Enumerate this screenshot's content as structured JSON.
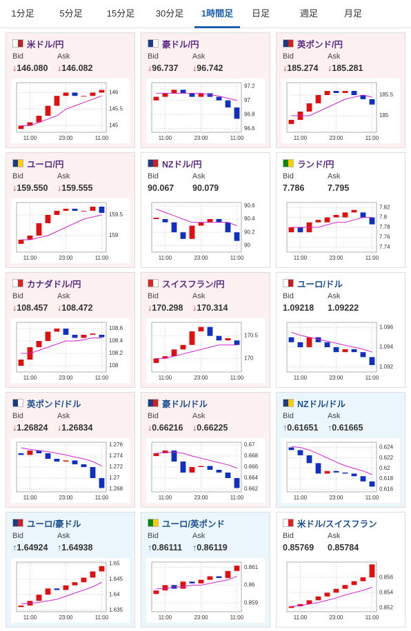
{
  "tabs": [
    "1分足",
    "5分足",
    "15分足",
    "30分足",
    "1時間足",
    "日足",
    "週足",
    "月足"
  ],
  "active_tab": 4,
  "bid_label": "Bid",
  "ask_label": "Ask",
  "cards": [
    {
      "name": "米ドル/円",
      "name_color": "#5b2a86",
      "bg": "#fdf0f0",
      "trend": "↓",
      "bid": "146.080",
      "ask": "146.082",
      "chart": {
        "type": "candlestick",
        "ylim": [
          144.8,
          146.3
        ],
        "yticks": [
          145,
          145.5,
          146
        ],
        "xticks": [
          {
            "value": 1,
            "label": "11:00"
          },
          {
            "value": 5,
            "label": "23:00"
          },
          {
            "value": 9,
            "label": "11:00"
          }
        ],
        "open": [
          144.9,
          145.0,
          145.1,
          145.3,
          145.6,
          145.9,
          146.0,
          145.9,
          145.9,
          146.0
        ],
        "close": [
          145.0,
          145.1,
          145.3,
          145.6,
          145.9,
          146.0,
          145.9,
          145.9,
          146.0,
          146.08
        ],
        "ma": [
          145.0,
          145.0,
          145.1,
          145.2,
          145.3,
          145.5,
          145.6,
          145.7,
          145.8,
          145.9
        ]
      }
    },
    {
      "name": "豪ドル/円",
      "name_color": "#5b2a86",
      "bg": "#fdf0f0",
      "trend": "↓",
      "bid": "96.737",
      "ask": "96.742",
      "chart": {
        "type": "candlestick",
        "ylim": [
          96.55,
          97.25
        ],
        "yticks": [
          96.6,
          96.8,
          97,
          97.2
        ],
        "xticks": [
          {
            "value": 1,
            "label": "11:00"
          },
          {
            "value": 5,
            "label": "23:00"
          },
          {
            "value": 9,
            "label": "11:00"
          }
        ],
        "open": [
          97.0,
          97.05,
          97.1,
          97.15,
          97.1,
          97.05,
          97.1,
          97.05,
          97.0,
          96.9
        ],
        "close": [
          97.05,
          97.1,
          97.15,
          97.1,
          97.05,
          97.1,
          97.05,
          97.0,
          96.9,
          96.74
        ],
        "ma": [
          97.1,
          97.1,
          97.1,
          97.1,
          97.1,
          97.1,
          97.08,
          97.06,
          97.03,
          97.0
        ]
      }
    },
    {
      "name": "英ポンド/円",
      "name_color": "#5b2a86",
      "bg": "#fdf0f0",
      "trend": "↓",
      "bid": "185.274",
      "ask": "185.281",
      "chart": {
        "type": "candlestick",
        "ylim": [
          184.6,
          185.8
        ],
        "yticks": [
          185,
          185.5
        ],
        "xticks": [
          {
            "value": 1,
            "label": "11:00"
          },
          {
            "value": 5,
            "label": "23:00"
          },
          {
            "value": 9,
            "label": "11:00"
          }
        ],
        "open": [
          184.8,
          184.9,
          185.1,
          185.3,
          185.5,
          185.6,
          185.55,
          185.6,
          185.5,
          185.4
        ],
        "close": [
          184.9,
          185.1,
          185.3,
          185.5,
          185.6,
          185.55,
          185.6,
          185.5,
          185.4,
          185.27
        ],
        "ma": [
          185.0,
          185.0,
          185.0,
          185.1,
          185.2,
          185.3,
          185.4,
          185.45,
          185.5,
          185.45
        ]
      }
    },
    {
      "name": "ユーロ/円",
      "name_color": "#5b2a86",
      "bg": "#fdf0f0",
      "trend": "↓",
      "bid": "159.550",
      "ask": "159.555",
      "chart": {
        "type": "candlestick",
        "ylim": [
          158.6,
          159.8
        ],
        "yticks": [
          159,
          159.5
        ],
        "xticks": [
          {
            "value": 1,
            "label": "11:00"
          },
          {
            "value": 5,
            "label": "23:00"
          },
          {
            "value": 9,
            "label": "11:00"
          }
        ],
        "open": [
          158.8,
          158.9,
          159.0,
          159.3,
          159.5,
          159.6,
          159.65,
          159.6,
          159.6,
          159.7
        ],
        "close": [
          158.9,
          159.0,
          159.3,
          159.5,
          159.6,
          159.65,
          159.6,
          159.6,
          159.7,
          159.55
        ],
        "ma": [
          158.9,
          158.9,
          158.95,
          159.0,
          159.1,
          159.2,
          159.3,
          159.4,
          159.45,
          159.5
        ]
      }
    },
    {
      "name": "NZドル/円",
      "name_color": "#5b2a86",
      "bg": "#ffffff",
      "bid": "90.067",
      "ask": "90.079",
      "chart": {
        "type": "candlestick",
        "ylim": [
          89.9,
          90.65
        ],
        "yticks": [
          90,
          90.2,
          90.4,
          90.6
        ],
        "xticks": [
          {
            "value": 1,
            "label": "11:00"
          },
          {
            "value": 5,
            "label": "23:00"
          },
          {
            "value": 9,
            "label": "11:00"
          }
        ],
        "open": [
          90.4,
          90.4,
          90.35,
          90.2,
          90.1,
          90.3,
          90.35,
          90.4,
          90.35,
          90.2
        ],
        "close": [
          90.42,
          90.35,
          90.2,
          90.1,
          90.3,
          90.35,
          90.4,
          90.35,
          90.2,
          90.07
        ],
        "ma": [
          90.55,
          90.5,
          90.45,
          90.4,
          90.35,
          90.35,
          90.35,
          90.35,
          90.35,
          90.3
        ]
      }
    },
    {
      "name": "ランド/円",
      "name_color": "#5b2a86",
      "bg": "#ffffff",
      "bid": "7.786",
      "ask": "7.795",
      "chart": {
        "type": "candlestick",
        "ylim": [
          7.73,
          7.83
        ],
        "yticks": [
          7.74,
          7.76,
          7.78,
          7.8,
          7.82
        ],
        "xticks": [
          {
            "value": 1,
            "label": "11:00"
          },
          {
            "value": 5,
            "label": "23:00"
          },
          {
            "value": 9,
            "label": "11:00"
          }
        ],
        "open": [
          7.77,
          7.78,
          7.77,
          7.79,
          7.79,
          7.8,
          7.8,
          7.81,
          7.81,
          7.8
        ],
        "close": [
          7.78,
          7.77,
          7.79,
          7.795,
          7.8,
          7.805,
          7.81,
          7.815,
          7.8,
          7.786
        ],
        "ma": [
          7.78,
          7.78,
          7.78,
          7.78,
          7.785,
          7.79,
          7.79,
          7.795,
          7.8,
          7.8
        ]
      }
    },
    {
      "name": "カナダドル/円",
      "name_color": "#5b2a86",
      "bg": "#fdf0f0",
      "trend": "↓",
      "bid": "108.457",
      "ask": "108.472",
      "chart": {
        "type": "candlestick",
        "ylim": [
          107.9,
          108.7
        ],
        "yticks": [
          108,
          108.2,
          108.4,
          108.6
        ],
        "xticks": [
          {
            "value": 1,
            "label": "11:00"
          },
          {
            "value": 5,
            "label": "23:00"
          },
          {
            "value": 9,
            "label": "11:00"
          }
        ],
        "open": [
          108.0,
          108.1,
          108.3,
          108.4,
          108.55,
          108.6,
          108.5,
          108.45,
          108.5,
          108.5
        ],
        "close": [
          108.1,
          108.3,
          108.4,
          108.55,
          108.6,
          108.5,
          108.45,
          108.5,
          108.52,
          108.46
        ],
        "ma": [
          108.2,
          108.2,
          108.25,
          108.3,
          108.35,
          108.4,
          108.4,
          108.42,
          108.45,
          108.45
        ]
      }
    },
    {
      "name": "スイスフラン/円",
      "name_color": "#5b2a86",
      "bg": "#fdf0f0",
      "trend": "↓",
      "bid": "170.298",
      "ask": "170.314",
      "chart": {
        "type": "candlestick",
        "ylim": [
          169.7,
          170.8
        ],
        "yticks": [
          170,
          170.5
        ],
        "xticks": [
          {
            "value": 1,
            "label": "11:00"
          },
          {
            "value": 5,
            "label": "23:00"
          },
          {
            "value": 9,
            "label": "11:00"
          }
        ],
        "open": [
          169.9,
          170.0,
          170.05,
          170.2,
          170.3,
          170.6,
          170.7,
          170.5,
          170.4,
          170.4
        ],
        "close": [
          170.0,
          170.05,
          170.2,
          170.3,
          170.6,
          170.7,
          170.5,
          170.4,
          170.45,
          170.3
        ],
        "ma": [
          170.0,
          170.0,
          170.05,
          170.1,
          170.15,
          170.2,
          170.25,
          170.3,
          170.3,
          170.3
        ]
      }
    },
    {
      "name": "ユーロ/ドル",
      "name_color": "#1b4f93",
      "bg": "#ffffff",
      "bid": "1.09218",
      "ask": "1.09222",
      "chart": {
        "type": "candlestick",
        "ylim": [
          1.0915,
          1.0965
        ],
        "yticks": [
          1.092,
          1.094,
          1.096
        ],
        "xticks": [
          {
            "value": 1,
            "label": "11:00"
          },
          {
            "value": 5,
            "label": "23:00"
          },
          {
            "value": 9,
            "label": "11:00"
          }
        ],
        "open": [
          1.095,
          1.0945,
          1.094,
          1.095,
          1.0945,
          1.094,
          1.0935,
          1.0938,
          1.0935,
          1.093
        ],
        "close": [
          1.0945,
          1.094,
          1.095,
          1.0945,
          1.094,
          1.0935,
          1.0938,
          1.0935,
          1.093,
          1.0922
        ],
        "ma": [
          1.0955,
          1.0952,
          1.095,
          1.0948,
          1.0946,
          1.0944,
          1.0942,
          1.094,
          1.0938,
          1.0935
        ]
      }
    },
    {
      "name": "英ポンド/ドル",
      "name_color": "#1b4f93",
      "bg": "#fdf0f0",
      "trend": "↓",
      "bid": "1.26824",
      "ask": "1.26834",
      "chart": {
        "type": "candlestick",
        "ylim": [
          1.2675,
          1.2765
        ],
        "yticks": [
          1.268,
          1.27,
          1.272,
          1.274,
          1.276
        ],
        "xticks": [
          {
            "value": 1,
            "label": "11:00"
          },
          {
            "value": 5,
            "label": "23:00"
          },
          {
            "value": 9,
            "label": "11:00"
          }
        ],
        "open": [
          1.2745,
          1.2742,
          1.275,
          1.2745,
          1.2735,
          1.273,
          1.2732,
          1.2725,
          1.272,
          1.27
        ],
        "close": [
          1.2742,
          1.275,
          1.2745,
          1.2735,
          1.273,
          1.2732,
          1.2725,
          1.272,
          1.27,
          1.2682
        ],
        "ma": [
          1.2755,
          1.2752,
          1.275,
          1.2748,
          1.2745,
          1.2742,
          1.2738,
          1.2735,
          1.273,
          1.2722
        ]
      }
    },
    {
      "name": "豪ドル/ドル",
      "name_color": "#1b4f93",
      "bg": "#fdf0f0",
      "trend": "↓",
      "bid": "0.66216",
      "ask": "0.66225",
      "chart": {
        "type": "candlestick",
        "ylim": [
          0.6615,
          0.6705
        ],
        "yticks": [
          0.662,
          0.664,
          0.666,
          0.668,
          0.67
        ],
        "xticks": [
          {
            "value": 1,
            "label": "11:00"
          },
          {
            "value": 5,
            "label": "23:00"
          },
          {
            "value": 9,
            "label": "11:00"
          }
        ],
        "open": [
          0.668,
          0.6685,
          0.669,
          0.667,
          0.665,
          0.666,
          0.6662,
          0.6655,
          0.665,
          0.664
        ],
        "close": [
          0.6685,
          0.669,
          0.667,
          0.665,
          0.666,
          0.6662,
          0.6655,
          0.665,
          0.664,
          0.6622
        ],
        "ma": [
          0.6685,
          0.6686,
          0.6687,
          0.6685,
          0.668,
          0.6676,
          0.6672,
          0.6668,
          0.6664,
          0.6658
        ]
      }
    },
    {
      "name": "NZドル/ドル",
      "name_color": "#1b4f93",
      "bg": "#eaf5fc",
      "trend": "↑",
      "trend_color": "#1f6fc0",
      "bid": "0.61651",
      "ask": "0.61665",
      "chart": {
        "type": "candlestick",
        "ylim": [
          0.6155,
          0.625
        ],
        "yticks": [
          0.616,
          0.618,
          0.62,
          0.622,
          0.624
        ],
        "xticks": [
          {
            "value": 1,
            "label": "11:00"
          },
          {
            "value": 5,
            "label": "23:00"
          },
          {
            "value": 9,
            "label": "11:00"
          }
        ],
        "open": [
          0.624,
          0.6235,
          0.6225,
          0.621,
          0.619,
          0.6195,
          0.6192,
          0.619,
          0.6185,
          0.6175
        ],
        "close": [
          0.6235,
          0.6225,
          0.621,
          0.619,
          0.6195,
          0.6192,
          0.619,
          0.6185,
          0.6175,
          0.6165
        ],
        "ma": [
          0.6242,
          0.624,
          0.6235,
          0.6228,
          0.622,
          0.6212,
          0.6205,
          0.62,
          0.6195,
          0.6188
        ]
      }
    },
    {
      "name": "ユーロ/豪ドル",
      "name_color": "#1b4f93",
      "bg": "#eaf5fc",
      "trend": "↑",
      "trend_color": "#1f6fc0",
      "bid": "1.64924",
      "ask": "1.64938",
      "chart": {
        "type": "candlestick",
        "ylim": [
          1.6345,
          1.6505
        ],
        "yticks": [
          1.635,
          1.64,
          1.645,
          1.65
        ],
        "xticks": [
          {
            "value": 1,
            "label": "11:00"
          },
          {
            "value": 5,
            "label": "23:00"
          },
          {
            "value": 9,
            "label": "11:00"
          }
        ],
        "open": [
          1.636,
          1.6365,
          1.638,
          1.64,
          1.642,
          1.6415,
          1.643,
          1.644,
          1.6455,
          1.6475
        ],
        "close": [
          1.6365,
          1.638,
          1.64,
          1.642,
          1.6415,
          1.643,
          1.644,
          1.6455,
          1.6475,
          1.6492
        ],
        "ma": [
          1.637,
          1.6372,
          1.6375,
          1.638,
          1.6385,
          1.6395,
          1.6405,
          1.6415,
          1.6425,
          1.644
        ]
      }
    },
    {
      "name": "ユーロ/英ポンド",
      "name_color": "#1b4f93",
      "bg": "#eaf5fc",
      "trend": "↑",
      "trend_color": "#1f6fc0",
      "bid": "0.86111",
      "ask": "0.86119",
      "chart": {
        "type": "candlestick",
        "ylim": [
          0.8585,
          0.8613
        ],
        "yticks": [
          0.859,
          0.86,
          0.861
        ],
        "xticks": [
          {
            "value": 1,
            "label": "11:00"
          },
          {
            "value": 5,
            "label": "23:00"
          },
          {
            "value": 9,
            "label": "11:00"
          }
        ],
        "open": [
          0.8595,
          0.8597,
          0.86,
          0.8598,
          0.8602,
          0.8601,
          0.8603,
          0.8605,
          0.8604,
          0.8608
        ],
        "close": [
          0.8597,
          0.86,
          0.8598,
          0.8602,
          0.8601,
          0.8603,
          0.8605,
          0.8604,
          0.8608,
          0.8611
        ],
        "ma": [
          0.8598,
          0.8598,
          0.8599,
          0.8599,
          0.86,
          0.86,
          0.8601,
          0.8602,
          0.8603,
          0.8605
        ]
      }
    },
    {
      "name": "米ドル/スイスフラン",
      "name_color": "#1b4f93",
      "bg": "#ffffff",
      "bid": "0.85769",
      "ask": "0.85784",
      "chart": {
        "type": "candlestick",
        "ylim": [
          0.8515,
          0.858
        ],
        "yticks": [
          0.852,
          0.854,
          0.856
        ],
        "xticks": [
          {
            "value": 1,
            "label": "11:00"
          },
          {
            "value": 5,
            "label": "23:00"
          },
          {
            "value": 9,
            "label": "11:00"
          }
        ],
        "open": [
          0.852,
          0.8522,
          0.8525,
          0.853,
          0.8535,
          0.854,
          0.8545,
          0.855,
          0.8555,
          0.856
        ],
        "close": [
          0.8522,
          0.8525,
          0.853,
          0.8535,
          0.854,
          0.8545,
          0.855,
          0.8555,
          0.856,
          0.8577
        ],
        "ma": [
          0.8522,
          0.8523,
          0.8525,
          0.8527,
          0.853,
          0.8533,
          0.8537,
          0.854,
          0.8543,
          0.8547
        ]
      }
    }
  ]
}
